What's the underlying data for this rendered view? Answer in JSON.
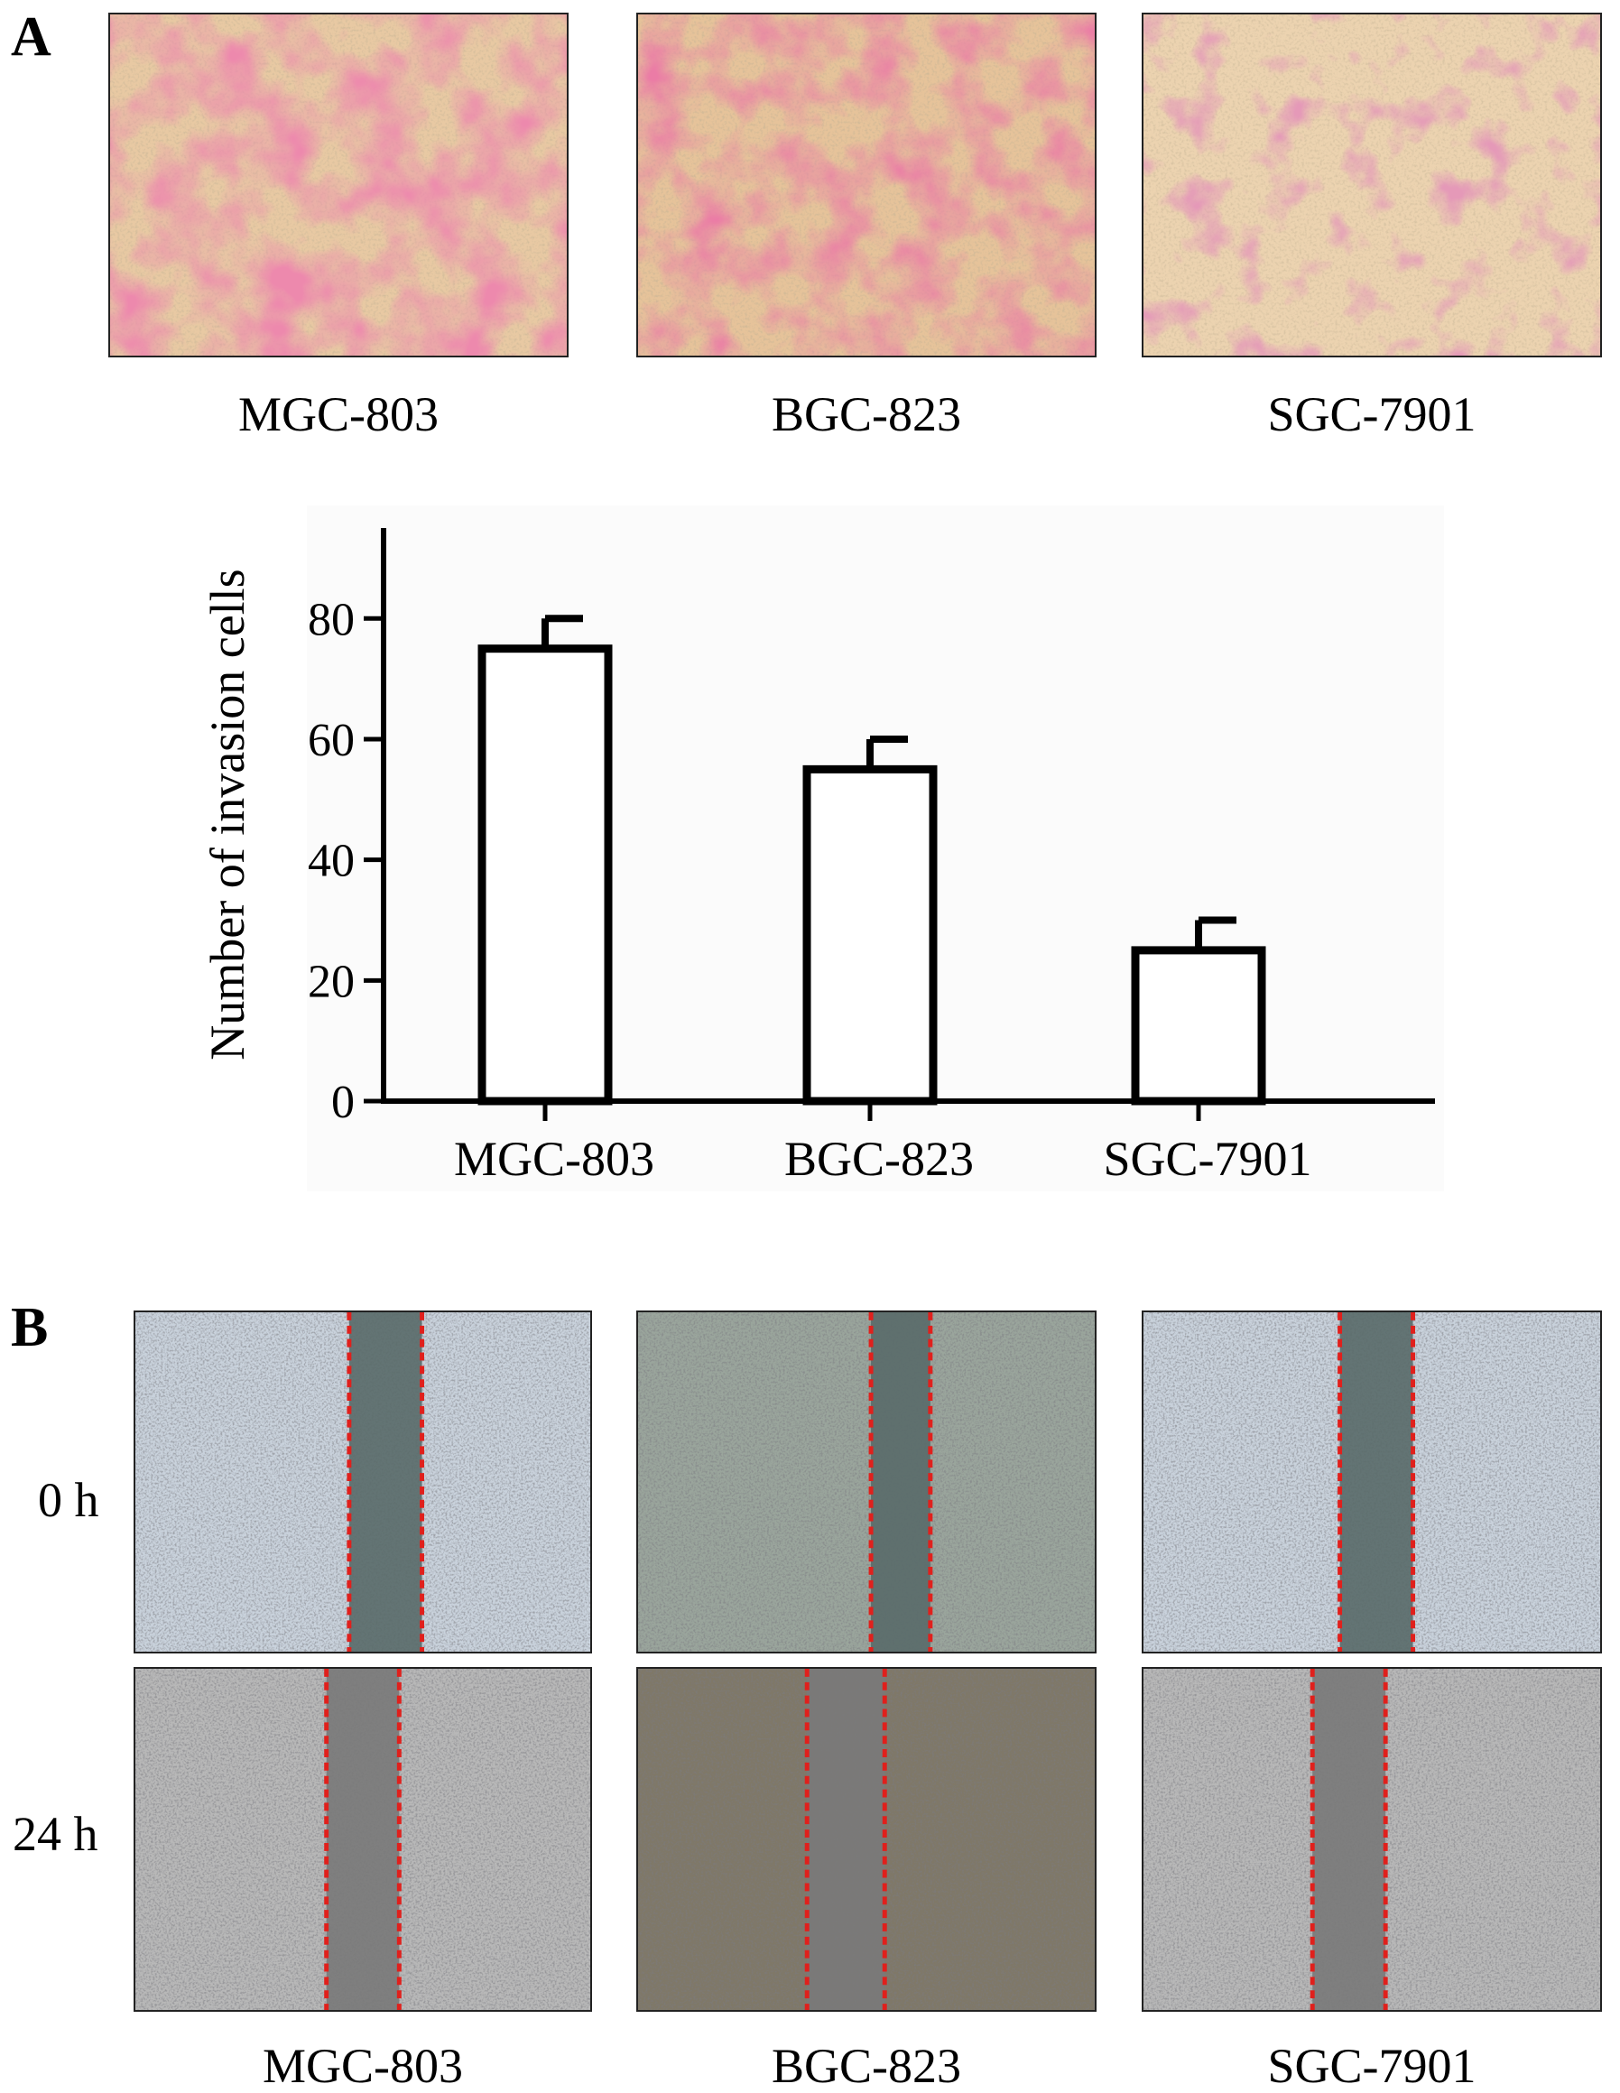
{
  "panel_a": {
    "letter": "A",
    "images": [
      {
        "caption": "MGC-803",
        "stain": "#d9406f",
        "bg": "#e8c9a3"
      },
      {
        "caption": "BGC-823",
        "stain": "#d33566",
        "bg": "#e6c39a"
      },
      {
        "caption": "SGC-7901",
        "stain": "#c6527a",
        "bg": "#ecd3b0"
      }
    ]
  },
  "chart_data": {
    "type": "bar",
    "categories": [
      "MGC-803",
      "BGC-823",
      "SGC-7901"
    ],
    "values": [
      75,
      55,
      25
    ],
    "error": [
      5,
      5,
      5
    ],
    "ylabel": "Number of invasion cells",
    "xlabel": "",
    "ylim": [
      0,
      95
    ],
    "yticks": [
      0,
      20,
      40,
      60,
      80
    ],
    "grid": false,
    "bar_fill": "#ffffff",
    "bar_stroke": "#000000"
  },
  "panel_b": {
    "letter": "B",
    "rows": [
      {
        "label": "0 h"
      },
      {
        "label": "24 h"
      }
    ],
    "columns": [
      {
        "caption": "MGC-803"
      },
      {
        "caption": "BGC-823"
      },
      {
        "caption": "SGC-7901"
      }
    ],
    "line_color": "#e0201c",
    "gap_color_0h": "#5a6b6a",
    "gap_color_24h": "#7a7a7a",
    "cell_color_0h": "#c9d2dc",
    "cell_color_24h": "#b8b8b8"
  }
}
